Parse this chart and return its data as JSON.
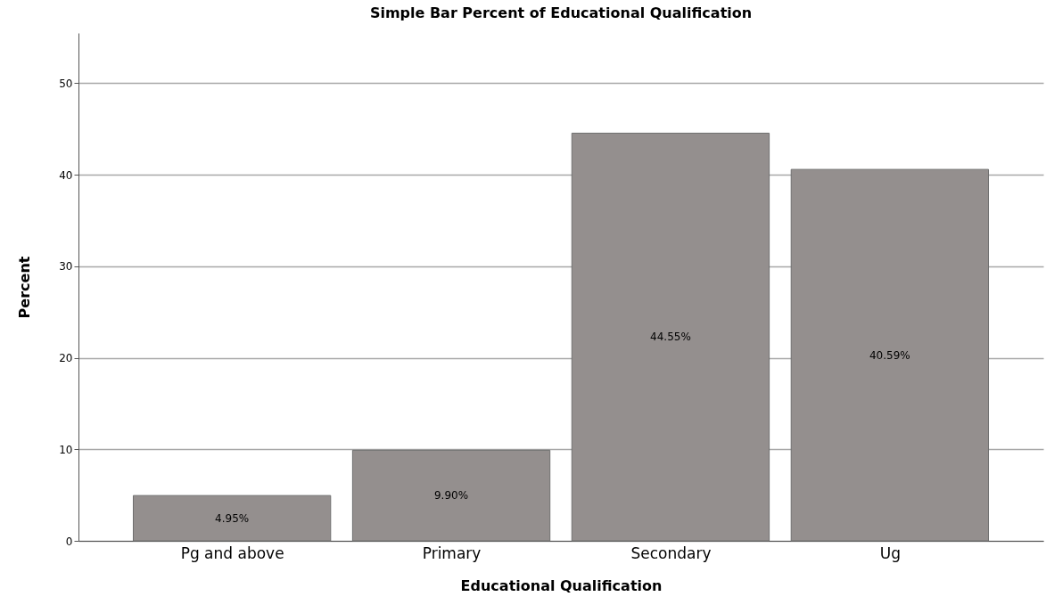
{
  "chart_data": {
    "type": "bar",
    "title": "Simple Bar Percent of Educational Qualification",
    "xlabel": "Educational Qualification",
    "ylabel": "Percent",
    "categories": [
      "Pg and above",
      "Primary",
      "Secondary",
      "Ug"
    ],
    "values": [
      4.95,
      9.9,
      44.55,
      40.59
    ],
    "value_labels": [
      "4.95%",
      "9.90%",
      "44.55%",
      "40.59%"
    ],
    "color": "#948f8e",
    "ylim": [
      0,
      55.5
    ],
    "yticks": [
      0,
      10,
      20,
      30,
      40,
      50
    ],
    "grid": "y"
  }
}
